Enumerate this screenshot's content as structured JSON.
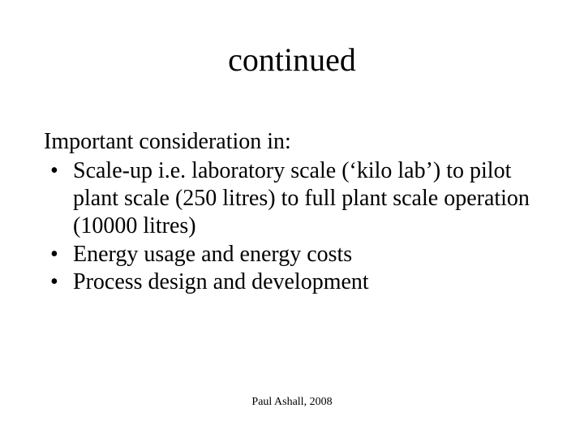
{
  "title": "continued",
  "intro": "Important consideration in:",
  "bullets": [
    "Scale-up i.e. laboratory scale (‘kilo lab’) to pilot plant scale (250 litres) to full plant scale operation (10000 litres)",
    "Energy usage and energy costs",
    "Process design and development"
  ],
  "footer": "Paul Ashall, 2008",
  "style": {
    "background_color": "#ffffff",
    "text_color": "#000000",
    "font_family": "Times New Roman",
    "title_fontsize": 40,
    "body_fontsize": 28,
    "footer_fontsize": 14,
    "slide_width": 720,
    "slide_height": 540
  }
}
